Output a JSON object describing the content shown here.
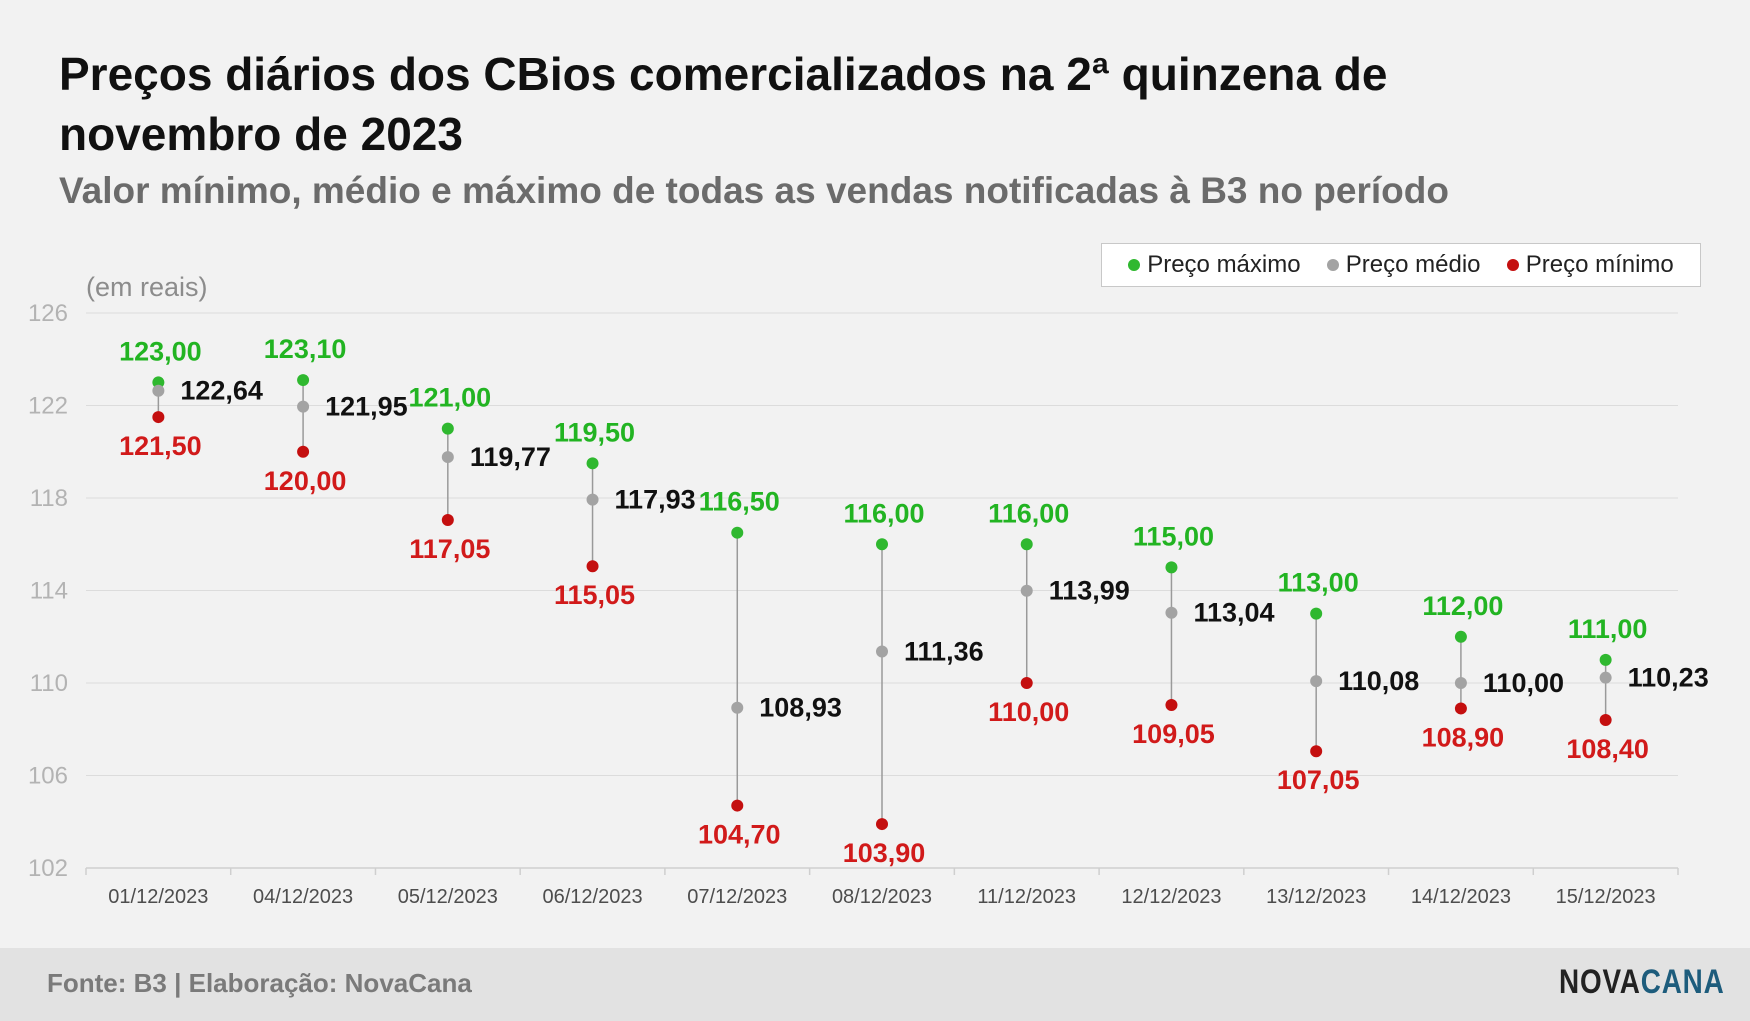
{
  "title": "Preços diários dos CBios comercializados na 2ª quinzena de novembro de 2023",
  "subtitle": "Valor mínimo, médio e máximo de todas as vendas notificadas à B3 no período",
  "unit_label": "(em reais)",
  "legend": {
    "max_label": "Preço máximo",
    "avg_label": "Preço médio",
    "min_label": "Preço mínimo"
  },
  "colors": {
    "max": "#2fb82f",
    "avg": "#a3a3a3",
    "min": "#c40f0f",
    "max_text": "#22b422",
    "avg_text": "#111111",
    "min_text": "#d11a1a"
  },
  "footer": {
    "source": "Fonte: B3 | Elaboração: NovaCana",
    "logo_part1": "NOVA",
    "logo_part2": "CANA"
  },
  "chart_data": {
    "type": "scatter",
    "ylim": [
      102,
      126
    ],
    "yticks": [
      "126",
      "122",
      "118",
      "114",
      "110",
      "106",
      "102"
    ],
    "grid": true,
    "legend_position": "top-right",
    "categories": [
      "01/12/2023",
      "04/12/2023",
      "05/12/2023",
      "06/12/2023",
      "07/12/2023",
      "08/12/2023",
      "11/12/2023",
      "12/12/2023",
      "13/12/2023",
      "14/12/2023",
      "15/12/2023"
    ],
    "series": [
      {
        "name": "Preço máximo",
        "values": [
          123.0,
          123.1,
          121.0,
          119.5,
          116.5,
          116.0,
          116.0,
          115.0,
          113.0,
          112.0,
          111.0
        ],
        "labels": [
          "123,00",
          "123,10",
          "121,00",
          "119,50",
          "116,50",
          "116,00",
          "116,00",
          "115,00",
          "113,00",
          "112,00",
          "111,00"
        ]
      },
      {
        "name": "Preço médio",
        "values": [
          122.64,
          121.95,
          119.77,
          117.93,
          108.93,
          111.36,
          113.99,
          113.04,
          110.08,
          110.0,
          110.23
        ],
        "labels": [
          "122,64",
          "121,95",
          "119,77",
          "117,93",
          "108,93",
          "111,36",
          "113,99",
          "113,04",
          "110,08",
          "110,00",
          "110,23"
        ]
      },
      {
        "name": "Preço mínimo",
        "values": [
          121.5,
          120.0,
          117.05,
          115.05,
          104.7,
          103.9,
          110.0,
          109.05,
          107.05,
          108.9,
          108.4
        ],
        "labels": [
          "121,50",
          "120,00",
          "117,05",
          "115,05",
          "104,70",
          "103,90",
          "110,00",
          "109,05",
          "107,05",
          "108,90",
          "108,40"
        ]
      }
    ]
  }
}
